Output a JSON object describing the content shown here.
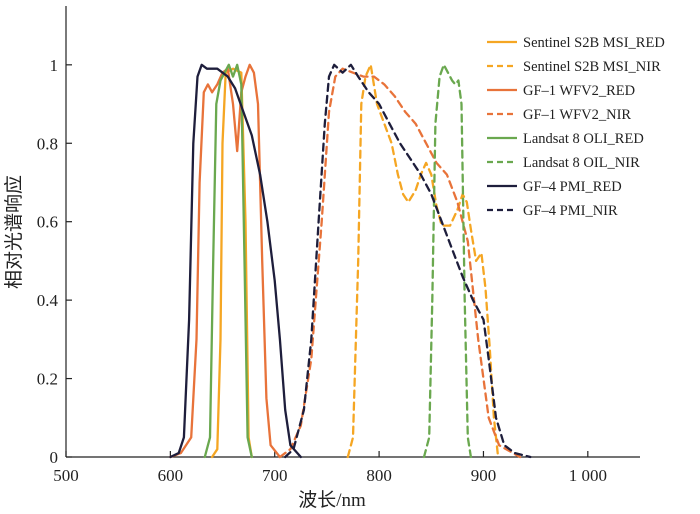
{
  "chart_data": {
    "type": "line",
    "xlabel": "波长/nm",
    "ylabel": "相对光谱响应",
    "xlim": [
      500,
      1050
    ],
    "ylim": [
      0,
      1.15
    ],
    "x_ticks": [
      500,
      600,
      700,
      800,
      900,
      1000
    ],
    "x_tick_labels": [
      "500",
      "600",
      "700",
      "800",
      "900",
      "1 000"
    ],
    "y_ticks": [
      0,
      0.2,
      0.4,
      0.6,
      0.8,
      1
    ],
    "y_tick_labels": [
      "0",
      "0.2",
      "0.4",
      "0.6",
      "0.8",
      "1"
    ],
    "grid": false,
    "legend_position": "top-right",
    "series": [
      {
        "name": "Sentinel S2B MSI_RED",
        "color": "#F5A623",
        "dash": "solid",
        "points": [
          [
            640,
            0
          ],
          [
            645,
            0.02
          ],
          [
            648,
            0.3
          ],
          [
            650,
            0.8
          ],
          [
            653,
            0.98
          ],
          [
            660,
            0.99
          ],
          [
            668,
            0.98
          ],
          [
            672,
            0.6
          ],
          [
            675,
            0.05
          ],
          [
            678,
            0
          ]
        ]
      },
      {
        "name": "Sentinel S2B MSI_NIR",
        "color": "#F5A623",
        "dash": "dashed",
        "points": [
          [
            770,
            0
          ],
          [
            775,
            0.05
          ],
          [
            780,
            0.5
          ],
          [
            783,
            0.9
          ],
          [
            787,
            0.97
          ],
          [
            792,
            1.0
          ],
          [
            798,
            0.9
          ],
          [
            805,
            0.85
          ],
          [
            812,
            0.8
          ],
          [
            818,
            0.72
          ],
          [
            823,
            0.67
          ],
          [
            828,
            0.65
          ],
          [
            835,
            0.68
          ],
          [
            840,
            0.72
          ],
          [
            845,
            0.75
          ],
          [
            850,
            0.72
          ],
          [
            855,
            0.64
          ],
          [
            860,
            0.59
          ],
          [
            868,
            0.59
          ],
          [
            875,
            0.63
          ],
          [
            880,
            0.67
          ],
          [
            884,
            0.65
          ],
          [
            888,
            0.58
          ],
          [
            893,
            0.5
          ],
          [
            898,
            0.52
          ],
          [
            902,
            0.43
          ],
          [
            906,
            0.28
          ],
          [
            910,
            0.1
          ],
          [
            914,
            0
          ]
        ]
      },
      {
        "name": "GF–1 WFV2_RED",
        "color": "#E8733A",
        "dash": "solid",
        "points": [
          [
            600,
            0
          ],
          [
            610,
            0.01
          ],
          [
            620,
            0.05
          ],
          [
            625,
            0.3
          ],
          [
            628,
            0.7
          ],
          [
            632,
            0.93
          ],
          [
            636,
            0.95
          ],
          [
            640,
            0.93
          ],
          [
            645,
            0.95
          ],
          [
            650,
            0.98
          ],
          [
            655,
            0.99
          ],
          [
            660,
            0.9
          ],
          [
            664,
            0.78
          ],
          [
            668,
            0.93
          ],
          [
            672,
            0.97
          ],
          [
            676,
            1.0
          ],
          [
            680,
            0.98
          ],
          [
            684,
            0.9
          ],
          [
            688,
            0.5
          ],
          [
            692,
            0.15
          ],
          [
            696,
            0.03
          ],
          [
            705,
            0
          ]
        ]
      },
      {
        "name": "GF–1 WFV2_NIR",
        "color": "#E8733A",
        "dash": "dashed",
        "points": [
          [
            705,
            0
          ],
          [
            715,
            0.02
          ],
          [
            725,
            0.08
          ],
          [
            735,
            0.25
          ],
          [
            745,
            0.6
          ],
          [
            752,
            0.88
          ],
          [
            758,
            0.97
          ],
          [
            765,
            0.99
          ],
          [
            775,
            0.98
          ],
          [
            785,
            0.97
          ],
          [
            795,
            0.97
          ],
          [
            805,
            0.95
          ],
          [
            815,
            0.92
          ],
          [
            825,
            0.88
          ],
          [
            835,
            0.85
          ],
          [
            845,
            0.8
          ],
          [
            855,
            0.75
          ],
          [
            865,
            0.72
          ],
          [
            875,
            0.65
          ],
          [
            885,
            0.55
          ],
          [
            895,
            0.3
          ],
          [
            905,
            0.1
          ],
          [
            915,
            0.03
          ],
          [
            935,
            0
          ]
        ]
      },
      {
        "name": "Landsat 8 OLI_RED",
        "color": "#6AA84F",
        "dash": "solid",
        "points": [
          [
            633,
            0
          ],
          [
            638,
            0.05
          ],
          [
            641,
            0.5
          ],
          [
            644,
            0.9
          ],
          [
            648,
            0.96
          ],
          [
            652,
            0.98
          ],
          [
            656,
            1.0
          ],
          [
            660,
            0.97
          ],
          [
            664,
            1.0
          ],
          [
            668,
            0.95
          ],
          [
            671,
            0.5
          ],
          [
            674,
            0.05
          ],
          [
            678,
            0
          ]
        ]
      },
      {
        "name": "Landsat 8 OIL_NIR",
        "color": "#6AA84F",
        "dash": "dashed",
        "points": [
          [
            843,
            0
          ],
          [
            848,
            0.05
          ],
          [
            851,
            0.4
          ],
          [
            854,
            0.85
          ],
          [
            858,
            0.97
          ],
          [
            862,
            1.0
          ],
          [
            866,
            0.98
          ],
          [
            870,
            0.96
          ],
          [
            873,
            0.95
          ],
          [
            876,
            0.96
          ],
          [
            879,
            0.9
          ],
          [
            882,
            0.4
          ],
          [
            885,
            0.05
          ],
          [
            888,
            0
          ]
        ]
      },
      {
        "name": "GF–4 PMI_RED",
        "color": "#1E1E3C",
        "dash": "solid",
        "points": [
          [
            600,
            0
          ],
          [
            608,
            0.01
          ],
          [
            613,
            0.05
          ],
          [
            618,
            0.35
          ],
          [
            622,
            0.8
          ],
          [
            626,
            0.97
          ],
          [
            630,
            1.0
          ],
          [
            635,
            0.99
          ],
          [
            645,
            0.99
          ],
          [
            655,
            0.97
          ],
          [
            662,
            0.94
          ],
          [
            670,
            0.88
          ],
          [
            678,
            0.82
          ],
          [
            686,
            0.72
          ],
          [
            693,
            0.6
          ],
          [
            700,
            0.45
          ],
          [
            705,
            0.3
          ],
          [
            710,
            0.12
          ],
          [
            715,
            0.03
          ],
          [
            725,
            0
          ]
        ]
      },
      {
        "name": "GF–4 PMI_NIR",
        "color": "#1E1E3C",
        "dash": "dashed",
        "points": [
          [
            710,
            0
          ],
          [
            718,
            0.02
          ],
          [
            728,
            0.12
          ],
          [
            735,
            0.3
          ],
          [
            742,
            0.6
          ],
          [
            748,
            0.85
          ],
          [
            752,
            0.97
          ],
          [
            757,
            1.0
          ],
          [
            765,
            0.98
          ],
          [
            773,
            1.0
          ],
          [
            780,
            0.97
          ],
          [
            790,
            0.93
          ],
          [
            800,
            0.9
          ],
          [
            810,
            0.85
          ],
          [
            820,
            0.8
          ],
          [
            830,
            0.76
          ],
          [
            840,
            0.72
          ],
          [
            850,
            0.67
          ],
          [
            860,
            0.6
          ],
          [
            870,
            0.53
          ],
          [
            880,
            0.46
          ],
          [
            890,
            0.4
          ],
          [
            900,
            0.35
          ],
          [
            905,
            0.25
          ],
          [
            912,
            0.1
          ],
          [
            920,
            0.03
          ],
          [
            930,
            0.01
          ],
          [
            945,
            0
          ]
        ]
      }
    ]
  }
}
